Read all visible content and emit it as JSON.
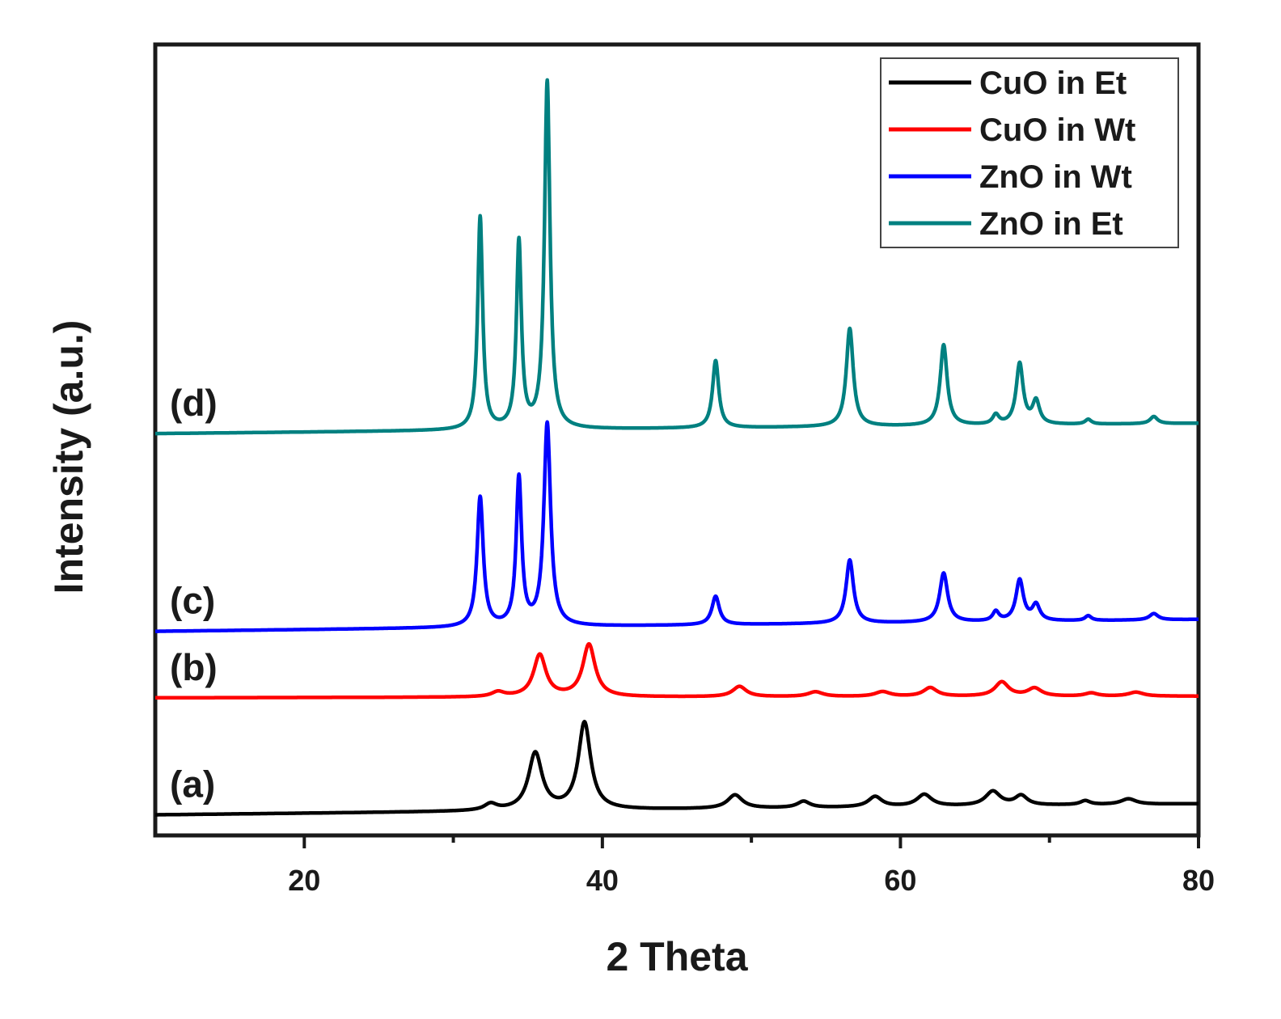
{
  "chart_data": {
    "type": "line",
    "title": "",
    "xlabel": "2 Theta",
    "ylabel": "Intensity (a.u.)",
    "xlim": [
      10,
      80
    ],
    "ylim": [
      0,
      100
    ],
    "xticks": [
      20,
      40,
      60,
      80
    ],
    "x_minor_ticks": [
      30,
      50,
      70
    ],
    "y_ticks_shown": false,
    "grid": false,
    "legend_position": "top-right",
    "series": [
      {
        "name": "CuO in Et",
        "label": "(a)",
        "color": "#000000",
        "baseline_start": 2.6,
        "baseline_end": 4.0,
        "peaks": [
          [
            32.5,
            0.8,
            0.5
          ],
          [
            35.5,
            7.2,
            0.55
          ],
          [
            38.8,
            11.0,
            0.5
          ],
          [
            48.9,
            1.7,
            0.6
          ],
          [
            53.5,
            0.8,
            0.5
          ],
          [
            58.3,
            1.3,
            0.55
          ],
          [
            61.6,
            1.5,
            0.6
          ],
          [
            66.2,
            1.8,
            0.6
          ],
          [
            68.1,
            1.2,
            0.5
          ],
          [
            72.4,
            0.5,
            0.4
          ],
          [
            75.3,
            0.7,
            0.6
          ]
        ]
      },
      {
        "name": "CuO in Wt",
        "label": "(b)",
        "color": "#ff0000",
        "baseline_start": 17.4,
        "baseline_end": 17.6,
        "peaks": [
          [
            33.0,
            0.6,
            0.5
          ],
          [
            35.8,
            5.3,
            0.5
          ],
          [
            39.1,
            6.6,
            0.5
          ],
          [
            49.2,
            1.3,
            0.55
          ],
          [
            54.3,
            0.6,
            0.6
          ],
          [
            58.8,
            0.6,
            0.6
          ],
          [
            62.0,
            1.1,
            0.55
          ],
          [
            66.8,
            1.8,
            0.55
          ],
          [
            69.0,
            1.0,
            0.55
          ],
          [
            72.8,
            0.4,
            0.5
          ],
          [
            75.8,
            0.5,
            0.6
          ]
        ]
      },
      {
        "name": "ZnO in Wt",
        "label": "(c)",
        "color": "#0000ff",
        "baseline_start": 25.8,
        "baseline_end": 27.3,
        "peaks": [
          [
            31.8,
            16.4,
            0.25
          ],
          [
            34.4,
            18.7,
            0.22
          ],
          [
            36.3,
            25.6,
            0.27
          ],
          [
            47.6,
            3.6,
            0.3
          ],
          [
            56.6,
            8.0,
            0.3
          ],
          [
            62.9,
            6.2,
            0.32
          ],
          [
            66.4,
            1.2,
            0.25
          ],
          [
            68.0,
            5.2,
            0.3
          ],
          [
            69.1,
            2.0,
            0.3
          ],
          [
            72.6,
            0.6,
            0.25
          ],
          [
            77.0,
            0.8,
            0.35
          ]
        ]
      },
      {
        "name": "ZnO in Et",
        "label": "(d)",
        "color": "#008080",
        "baseline_start": 50.8,
        "baseline_end": 52.1,
        "peaks": [
          [
            31.8,
            26.9,
            0.2
          ],
          [
            34.4,
            23.6,
            0.2
          ],
          [
            36.3,
            43.9,
            0.22
          ],
          [
            47.6,
            8.5,
            0.25
          ],
          [
            56.6,
            12.4,
            0.28
          ],
          [
            62.9,
            10.2,
            0.28
          ],
          [
            66.4,
            1.2,
            0.25
          ],
          [
            68.0,
            7.7,
            0.28
          ],
          [
            69.1,
            2.9,
            0.28
          ],
          [
            72.6,
            0.6,
            0.25
          ],
          [
            77.0,
            0.9,
            0.3
          ]
        ]
      }
    ]
  }
}
